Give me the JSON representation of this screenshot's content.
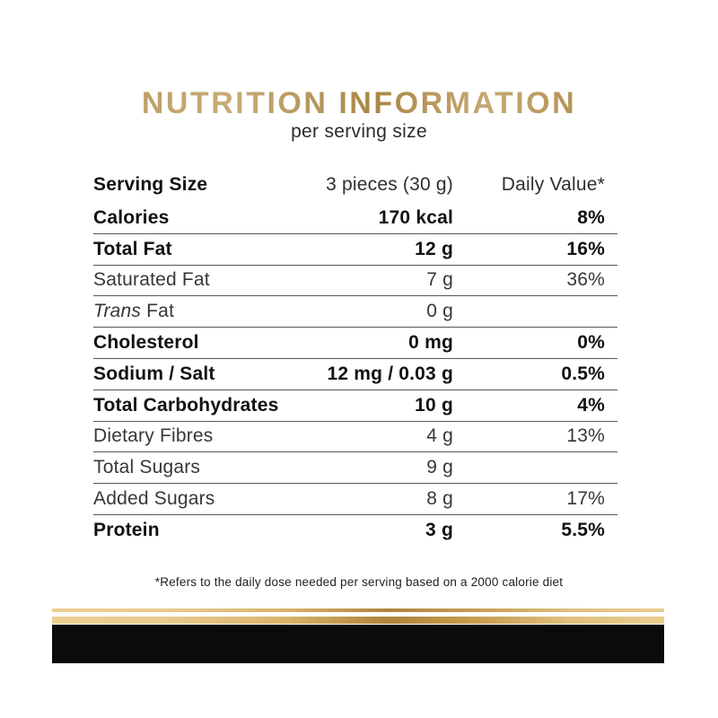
{
  "title": "NUTRITION INFORMATION",
  "subtitle": "per serving size",
  "table": {
    "header": {
      "label": "Serving Size",
      "amount": "3 pieces (30 g)",
      "daily_value": "Daily Value*"
    },
    "rows": [
      {
        "label": "Calories",
        "amount": "170 kcal",
        "daily_value": "8%",
        "bold": true
      },
      {
        "label": "Total Fat",
        "amount": "12 g",
        "daily_value": "16%",
        "bold": true
      },
      {
        "label": "Saturated Fat",
        "amount": "7 g",
        "daily_value": "36%",
        "bold": false
      },
      {
        "label": "Trans Fat",
        "label_italic": "Trans",
        "label_rest": " Fat",
        "amount": "0 g",
        "daily_value": "",
        "bold": false
      },
      {
        "label": "Cholesterol",
        "amount": "0 mg",
        "daily_value": "0%",
        "bold": true
      },
      {
        "label": "Sodium / Salt",
        "amount": "12 mg / 0.03 g",
        "daily_value": "0.5%",
        "bold": true
      },
      {
        "label": "Total Carbohydrates",
        "amount": "10 g",
        "daily_value": "4%",
        "bold": true
      },
      {
        "label": "Dietary Fibres",
        "amount": "4 g",
        "daily_value": "13%",
        "bold": false
      },
      {
        "label": "Total Sugars",
        "amount": "9 g",
        "daily_value": "",
        "bold": false
      },
      {
        "label": "Added Sugars",
        "amount": "8 g",
        "daily_value": "17%",
        "bold": false
      },
      {
        "label": "Protein",
        "amount": "3 g",
        "daily_value": "5.5%",
        "bold": true
      }
    ]
  },
  "footnote": "*Refers to the daily dose needed per serving based on a 2000 calorie diet",
  "colors": {
    "title_gold": "#b9985c",
    "bar_gold_light": "#e9cd90",
    "bar_gold_dark": "#ae843a",
    "bar_black": "#0b0b0b",
    "text_bold": "#121212",
    "text_regular": "#373737",
    "rule_gray": "#565656"
  }
}
